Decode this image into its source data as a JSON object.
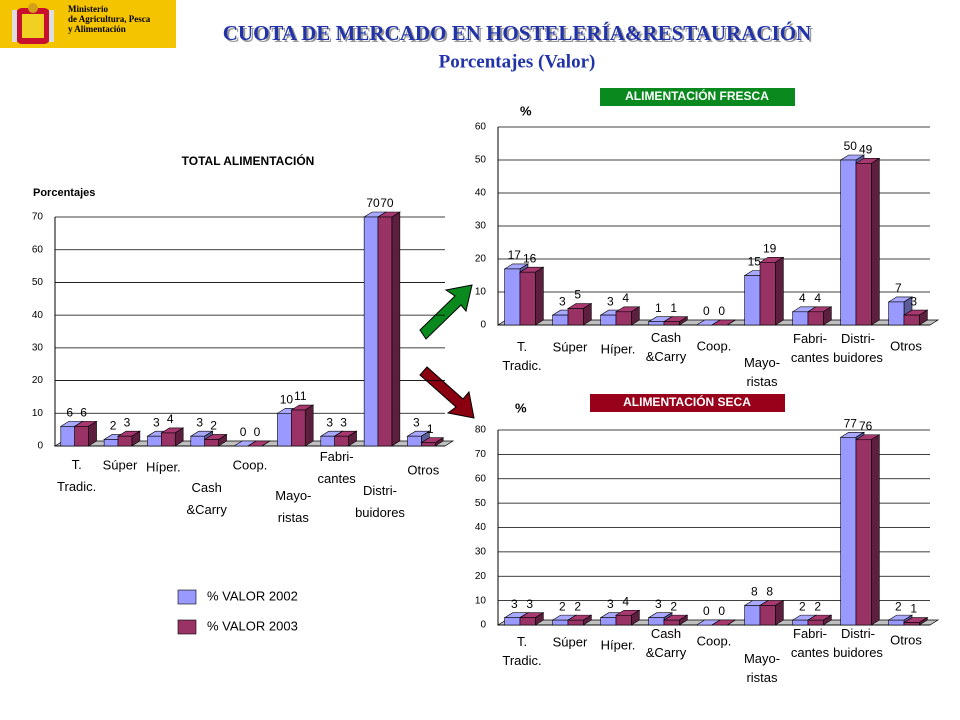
{
  "header": {
    "ministry": "Ministerio\nde Agricultura, Pesca\ny Alimentación",
    "title": "CUOTA DE MERCADO EN HOSTELERÍA&RESTAURACIÓN",
    "subtitle": "Porcentajes (Valor)"
  },
  "chart_data": [
    {
      "type": "bar",
      "title": "TOTAL ALIMENTACIÓN",
      "y_label": "Porcentajes",
      "categories": [
        "T.\nTradic.",
        "Súper",
        "Híper.",
        "Cash\n&Carry",
        "Coop.",
        "Mayo-\nristas",
        "Fabri-\ncantes",
        "Distri-\nbuidores",
        "Otros"
      ],
      "series": [
        {
          "name": "% VALOR 2002",
          "color": "#9999ff",
          "values": [
            6,
            2,
            3,
            3,
            0,
            10,
            3,
            70,
            3
          ]
        },
        {
          "name": "% VALOR 2003",
          "color": "#993366",
          "values": [
            6,
            3,
            4,
            2,
            0,
            11,
            3,
            70,
            1
          ]
        }
      ],
      "ylim": [
        0,
        70
      ],
      "yticks": [
        0,
        10,
        20,
        30,
        40,
        50,
        60,
        70
      ],
      "grid": true
    },
    {
      "type": "bar",
      "title": "ALIMENTACIÓN FRESCA",
      "title_background": "#0a8a1e",
      "y_label": "%",
      "categories": [
        "T.\nTradic.",
        "Súper",
        "Híper.",
        "Cash\n&Carry",
        "Coop.",
        "Mayo-\nristas",
        "Fabri-\ncantes",
        "Distri-\nbuidores",
        "Otros"
      ],
      "series": [
        {
          "color": "#9999ff",
          "values": [
            17,
            3,
            3,
            1,
            0,
            15,
            4,
            50,
            7
          ]
        },
        {
          "color": "#993366",
          "values": [
            16,
            5,
            4,
            1,
            0,
            19,
            4,
            49,
            3
          ]
        }
      ],
      "ylim": [
        0,
        60
      ],
      "yticks": [
        0,
        10,
        20,
        30,
        40,
        50,
        60
      ],
      "grid": true
    },
    {
      "type": "bar",
      "title": "ALIMENTACIÓN SECA",
      "title_background": "#99001a",
      "y_label": "%",
      "categories": [
        "T.\nTradic.",
        "Súper",
        "Híper.",
        "Cash\n&Carry",
        "Coop.",
        "Mayo-\nristas",
        "Fabri-\ncantes",
        "Distri-\nbuidores",
        "Otros"
      ],
      "series": [
        {
          "color": "#9999ff",
          "values": [
            3,
            2,
            3,
            3,
            0,
            8,
            2,
            77,
            2
          ]
        },
        {
          "color": "#993366",
          "values": [
            3,
            2,
            4,
            2,
            0,
            8,
            2,
            76,
            1
          ]
        }
      ],
      "ylim": [
        0,
        80
      ],
      "yticks": [
        0,
        10,
        20,
        30,
        40,
        50,
        60,
        70,
        80
      ],
      "grid": true
    }
  ]
}
